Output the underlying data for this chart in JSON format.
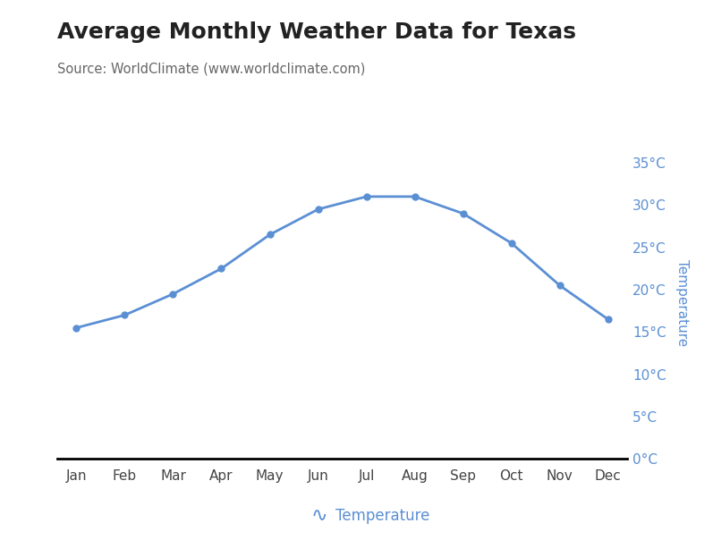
{
  "title": "Average Monthly Weather Data for Texas",
  "subtitle": "Source: WorldClimate (www.worldclimate.com)",
  "months": [
    "Jan",
    "Feb",
    "Mar",
    "Apr",
    "May",
    "Jun",
    "Jul",
    "Aug",
    "Sep",
    "Oct",
    "Nov",
    "Dec"
  ],
  "temperature": [
    15.5,
    17.0,
    19.5,
    22.5,
    26.5,
    29.5,
    31.0,
    31.0,
    29.0,
    25.5,
    20.5,
    16.5
  ],
  "line_color": "#5b8fd4",
  "marker_color": "#5b8fd4",
  "axis_color": "#5b8fd4",
  "title_color": "#222222",
  "subtitle_color": "#666666",
  "background_color": "#ffffff",
  "yticks": [
    0,
    5,
    10,
    15,
    20,
    25,
    30,
    35
  ],
  "ylim": [
    0,
    37
  ],
  "ylabel": "Temperature",
  "legend_label": "Temperature",
  "legend_wavy_char": "∿",
  "title_fontsize": 18,
  "subtitle_fontsize": 10.5,
  "tick_fontsize": 11,
  "xtick_fontsize": 11,
  "ylabel_fontsize": 11,
  "legend_fontsize": 12
}
